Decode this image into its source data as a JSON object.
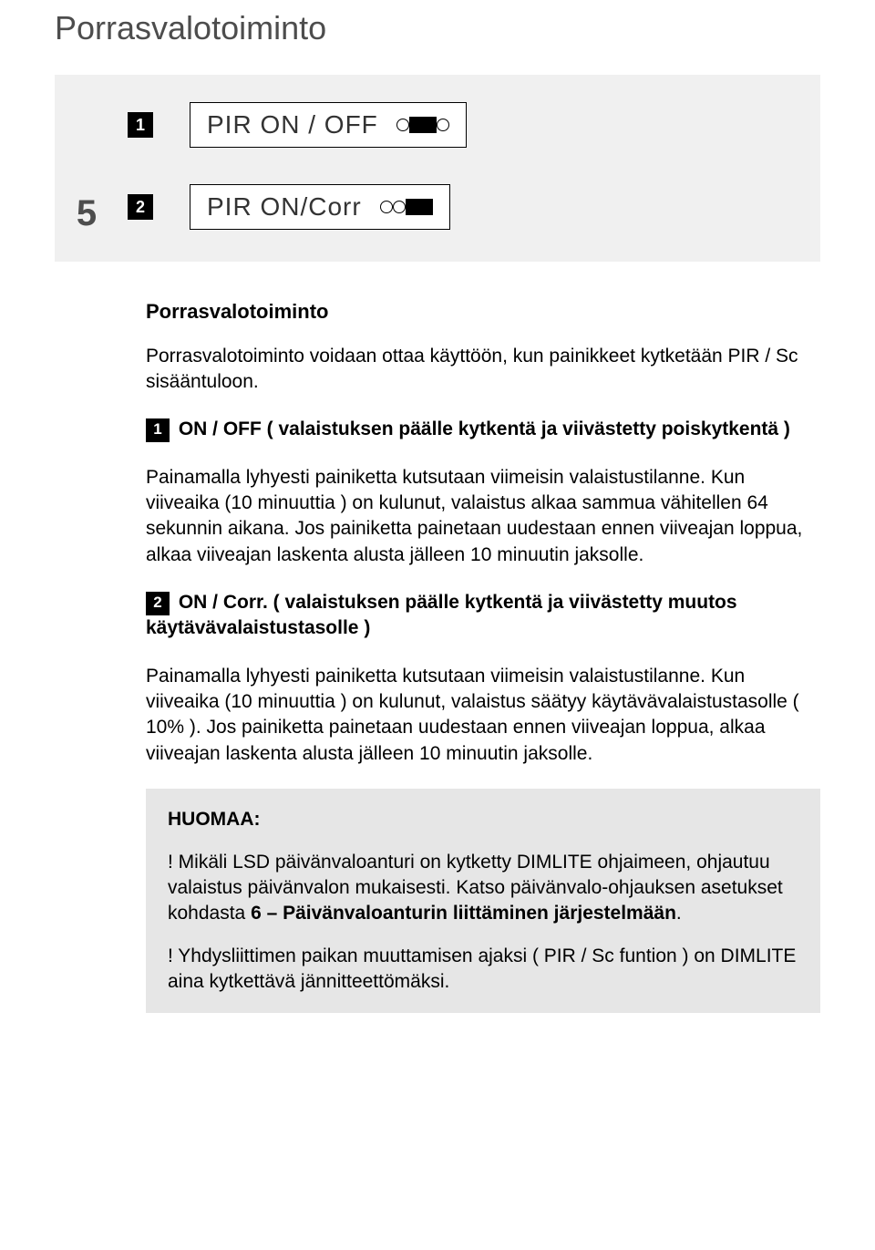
{
  "page": {
    "main_title": "Porrasvalotoiminto",
    "section_number": "5"
  },
  "diagram": {
    "rows": [
      {
        "badge": "1",
        "label": "PIR  ON / OFF",
        "slider": "o-knob-o"
      },
      {
        "badge": "2",
        "label": "PIR  ON/Corr",
        "slider": "oo-knob"
      }
    ]
  },
  "content": {
    "subtitle": "Porrasvalotoiminto",
    "intro": "Porrasvalotoiminto voidaan ottaa käyttöön, kun painikkeet kytketään PIR / Sc sisääntuloon.",
    "item1": {
      "badge": "1",
      "heading": " ON / OFF ( valaistuksen päälle kytkentä ja viivästetty poiskytkentä )",
      "body": "Painamalla lyhyesti painiketta kutsutaan viimeisin valaistustilanne. Kun viiveaika (10 minuuttia ) on kulunut, valaistus alkaa sammua vähitellen 64 sekunnin aikana. Jos painiketta painetaan uudestaan ennen viiveajan loppua, alkaa viiveajan laskenta alusta jälleen 10 minuutin jaksolle."
    },
    "item2": {
      "badge": "2",
      "heading": " ON / Corr. ( valaistuksen päälle kytkentä ja viivästetty muutos käytävävalaistustasolle )",
      "body": "Painamalla lyhyesti painiketta kutsutaan viimeisin valaistustilanne. Kun viiveaika (10 minuuttia ) on kulunut, valaistus säätyy käytävävalaistustasolle ( 10% ). Jos painiketta painetaan uudestaan ennen viiveajan loppua, alkaa viiveajan laskenta alusta jälleen 10 minuutin jaksolle."
    }
  },
  "note": {
    "title": "HUOMAA:",
    "p1_prefix": "! Mikäli LSD päivänvaloanturi on kytketty DIMLITE ohjaimeen, ohjautuu valaistus päivänvalon mukaisesti. Katso päivänvalo-ohjauksen asetukset kohdasta ",
    "p1_bold": "6 – Päivänvaloanturin liittäminen järjestelmään",
    "p1_suffix": ".",
    "p2": "! Yhdysliittimen paikan muuttamisen ajaksi ( PIR / Sc funtion ) on DIMLITE aina kytkettävä jännitteettömäksi."
  },
  "colors": {
    "text": "#000000",
    "title_grey": "#4d4d4d",
    "diagram_bg": "#f0f0f0",
    "note_bg": "#e6e6e6",
    "badge_bg": "#000000",
    "badge_fg": "#ffffff"
  }
}
